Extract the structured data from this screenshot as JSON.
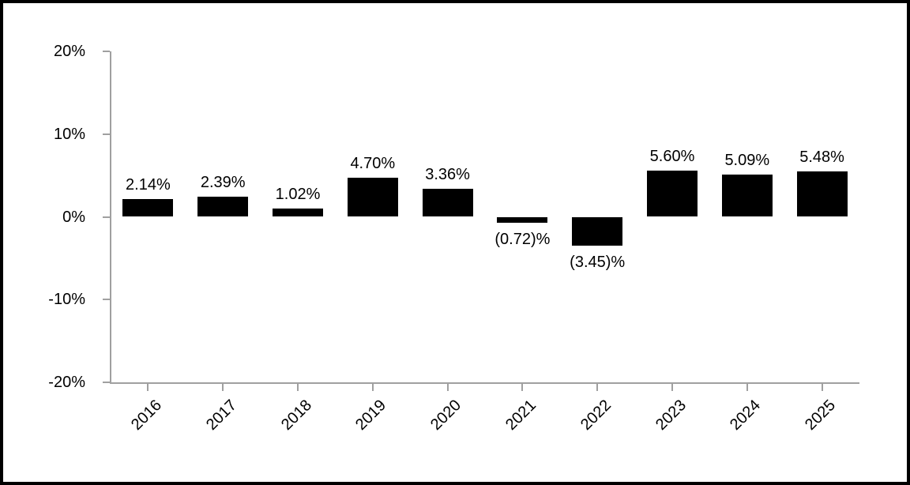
{
  "frame": {
    "border_color": "#000000",
    "background_color": "#ffffff"
  },
  "chart_data": {
    "type": "bar",
    "title": "",
    "xlabel": "",
    "ylabel": "",
    "categories": [
      "2016",
      "2017",
      "2018",
      "2019",
      "2020",
      "2021",
      "2022",
      "2023",
      "2024",
      "2025"
    ],
    "values": [
      2.14,
      2.39,
      1.02,
      4.7,
      3.36,
      -0.72,
      -3.45,
      5.6,
      5.09,
      5.48
    ],
    "labels": [
      "2.14%",
      "2.39%",
      "1.02%",
      "4.70%",
      "3.36%",
      "(0.72)%",
      "(3.45)%",
      "5.60%",
      "5.09%",
      "5.48%"
    ],
    "ylim": [
      -20,
      20
    ],
    "yticks": [
      20,
      10,
      0,
      -10,
      -20
    ],
    "ytick_labels": [
      "20%",
      "10%",
      "0%",
      "-10%",
      "-20%"
    ],
    "bar_color": "#000000",
    "axis_color": "#a0a0a0",
    "text_color": "#000000",
    "grid": false,
    "legend": "none",
    "xtick_rotation_deg": -45
  }
}
